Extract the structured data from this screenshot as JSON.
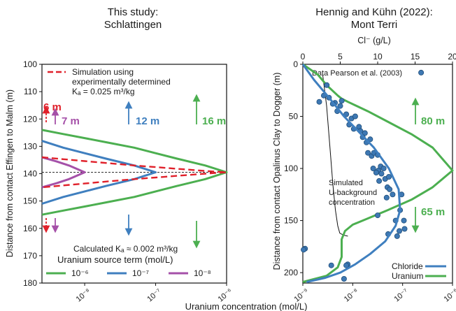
{
  "colors": {
    "green": "#4caf50",
    "blue": "#3f7fbf",
    "purple": "#a550a8",
    "red": "#e0202a",
    "marker_fill": "#3e78b3",
    "marker_edge": "#1f4e7a"
  },
  "shared_xlabel": "Uranium concentration (mol/L)",
  "chart_data": [
    {
      "type": "line",
      "title": "This study:\nSchlattingen",
      "ylabel": "Distance from contact Effingen to Malm (m)",
      "ylim": [
        180,
        100
      ],
      "yticks": [
        "100",
        "110",
        "120",
        "130",
        "140",
        "150",
        "160",
        "170",
        "180"
      ],
      "xscale": "log",
      "xlim": [
        2.5e-09,
        1e-06
      ],
      "xticks": [
        {
          "value": 1e-08,
          "label": "10⁻⁸"
        },
        {
          "value": 1e-07,
          "label": "10⁻⁷"
        },
        {
          "value": 1e-06,
          "label": "10⁻⁶"
        }
      ],
      "center_line_y": 139.5,
      "series": [
        {
          "name": "Simulation using experimentally determined Kd = 0.025 m³/kg",
          "style": "dashed",
          "color": "red",
          "x": [
            2.5e-09,
            5e-09,
            1e-08,
            2e-08,
            5e-08,
            1e-07,
            2e-07,
            5e-07,
            1e-06,
            5e-07,
            2e-07,
            1e-07,
            5e-08,
            2e-08,
            1e-08,
            5e-09,
            2.5e-09
          ],
          "y": [
            134,
            134.7,
            135.4,
            136.1,
            137.0,
            137.6,
            138.2,
            139.0,
            139.5,
            140.0,
            140.8,
            141.4,
            142.0,
            142.9,
            143.6,
            144.3,
            145
          ]
        },
        {
          "name": "10⁻⁶",
          "style": "solid",
          "color": "green",
          "x": [
            2.5e-09,
            5e-09,
            1e-08,
            2e-08,
            5e-08,
            1e-07,
            2e-07,
            5e-07,
            1e-06,
            5e-07,
            2e-07,
            1e-07,
            5e-08,
            2e-08,
            1e-08,
            5e-09,
            2.5e-09
          ],
          "y": [
            124,
            125.5,
            127,
            128.5,
            130.5,
            132.5,
            134.5,
            137.0,
            139.5,
            142.0,
            144.5,
            146.5,
            148.5,
            150.5,
            152.0,
            153.5,
            155
          ]
        },
        {
          "name": "10⁻⁷",
          "style": "solid",
          "color": "blue",
          "x": [
            2.5e-09,
            5e-09,
            1e-08,
            2e-08,
            5e-08,
            1e-07,
            5e-08,
            2e-08,
            1e-08,
            5e-09,
            2.5e-09
          ],
          "y": [
            128,
            130.5,
            132.5,
            134.5,
            137.0,
            139.5,
            142.0,
            144.5,
            146.5,
            148.5,
            151
          ]
        },
        {
          "name": "10⁻⁸",
          "style": "solid",
          "color": "purple",
          "x": [
            2.5e-09,
            4e-09,
            6e-09,
            1e-08,
            6e-09,
            4e-09,
            2.5e-09
          ],
          "y": [
            134,
            135.5,
            137.0,
            139.5,
            142.0,
            143.5,
            145
          ]
        }
      ],
      "annotations": {
        "red_depth": "6 m",
        "purple_depth": "7 m",
        "blue_depth": "12 m",
        "green_depth": "16 m",
        "calc_kd": "Calculated Kₐ ≈ 0.002 m³/kg",
        "legend_line1": "Simulation using",
        "legend_line2": "experimentally determined",
        "legend_line3": "Kₐ = 0.025 m³/kg"
      },
      "source_term_title": "Uranium source term (mol/L)",
      "source_term_legend": [
        "10⁻⁶",
        "10⁻⁷",
        "10⁻⁸"
      ]
    },
    {
      "type": "scatter",
      "title": "Hennig and Kühn (2022):\nMont Terri",
      "ylabel": "Distance from contact Opalinus Clay to Dogger (m)",
      "ylim": [
        210,
        0
      ],
      "yticks": [
        "0",
        "50",
        "100",
        "150",
        "200"
      ],
      "xscale": "log",
      "xlim": [
        1e-09,
        1e-06
      ],
      "xticks": [
        {
          "value": 1e-09,
          "label": "10⁻⁹"
        },
        {
          "value": 1e-08,
          "label": "10⁻⁸"
        },
        {
          "value": 1e-07,
          "label": "10⁻⁷"
        },
        {
          "value": 1e-06,
          "label": "10⁻⁶"
        }
      ],
      "top_axis": {
        "label": "Cl⁻ (g/L)",
        "xlim": [
          0,
          20
        ],
        "ticks": [
          "0",
          "5",
          "10",
          "15",
          "20"
        ]
      },
      "data_source": "Data Pearson et al. (2003)",
      "bg_label_lines": [
        "Simulated",
        "U-background",
        "concentration"
      ],
      "green_arrow_up": "80 m",
      "green_arrow_down": "65 m",
      "legend": [
        "Chloride",
        "Uranium"
      ],
      "chloride_points": {
        "cl": [
          15.8,
          3.2,
          2.8,
          3.5,
          2.2,
          4.3,
          4.0,
          5.0,
          5.2,
          4.6,
          5.8,
          6.5,
          7.0,
          6.2,
          7.5,
          6.8,
          7.7,
          8.3,
          8.0,
          8.5,
          9.0,
          8.7,
          9.2,
          9.5,
          10.0,
          9.4,
          10.1,
          10.4,
          9.8,
          10.8,
          10.5,
          11.0,
          10.2,
          11.5,
          11.3,
          11.6,
          12.0,
          11.2,
          10.0,
          13.0,
          13.5,
          12.4,
          12.9,
          13.6,
          11.4,
          12.6,
          0.3,
          0.1,
          6.0,
          5.8,
          3.8,
          5.5,
          13.2
        ],
        "depth": [
          8,
          20,
          30,
          32,
          36,
          37,
          38,
          40,
          35,
          45,
          48,
          52,
          50,
          58,
          60,
          62,
          64,
          66,
          70,
          75,
          72,
          85,
          88,
          85,
          87,
          100,
          102,
          98,
          104,
          100,
          105,
          110,
          112,
          108,
          118,
          120,
          125,
          128,
          145,
          140,
          150,
          150,
          160,
          158,
          163,
          165,
          177,
          178,
          192,
          193,
          193,
          206,
          125
        ]
      },
      "chloride_fit": {
        "cl": [
          0,
          1.5,
          3.5,
          5.5,
          7.5,
          9.5,
          11.5,
          12.8,
          13.0,
          12.4,
          11.0,
          9.0,
          7.0,
          5.0,
          3.0,
          0.5
        ],
        "depth": [
          0,
          15,
          32,
          50,
          65,
          80,
          100,
          120,
          140,
          155,
          170,
          182,
          192,
          200,
          205,
          209
        ]
      },
      "uranium_profile": {
        "x": [
          1e-09,
          2e-09,
          3e-09,
          5e-09,
          6e-09,
          8e-09,
          2e-08,
          5e-08,
          1.5e-07,
          4e-07,
          1e-06,
          4e-07,
          1.5e-07,
          5e-08,
          2e-08,
          1e-08,
          7e-09,
          6e-09,
          6e-09,
          5e-09,
          3e-09,
          1e-09
        ],
        "y": [
          0,
          10,
          20,
          30,
          33,
          36,
          45,
          55,
          67,
          80,
          102,
          118,
          130,
          140,
          148,
          154,
          160,
          168,
          185,
          195,
          203,
          209
        ]
      },
      "background_curve": {
        "x": [
          2.5e-09,
          3e-09,
          3.5e-09,
          4e-09,
          4.5e-09,
          5e-09,
          5.5e-09,
          6.5e-09,
          8e-09
        ],
        "y": [
          10,
          40,
          80,
          115,
          140,
          155,
          162,
          164,
          165
        ]
      }
    }
  ]
}
